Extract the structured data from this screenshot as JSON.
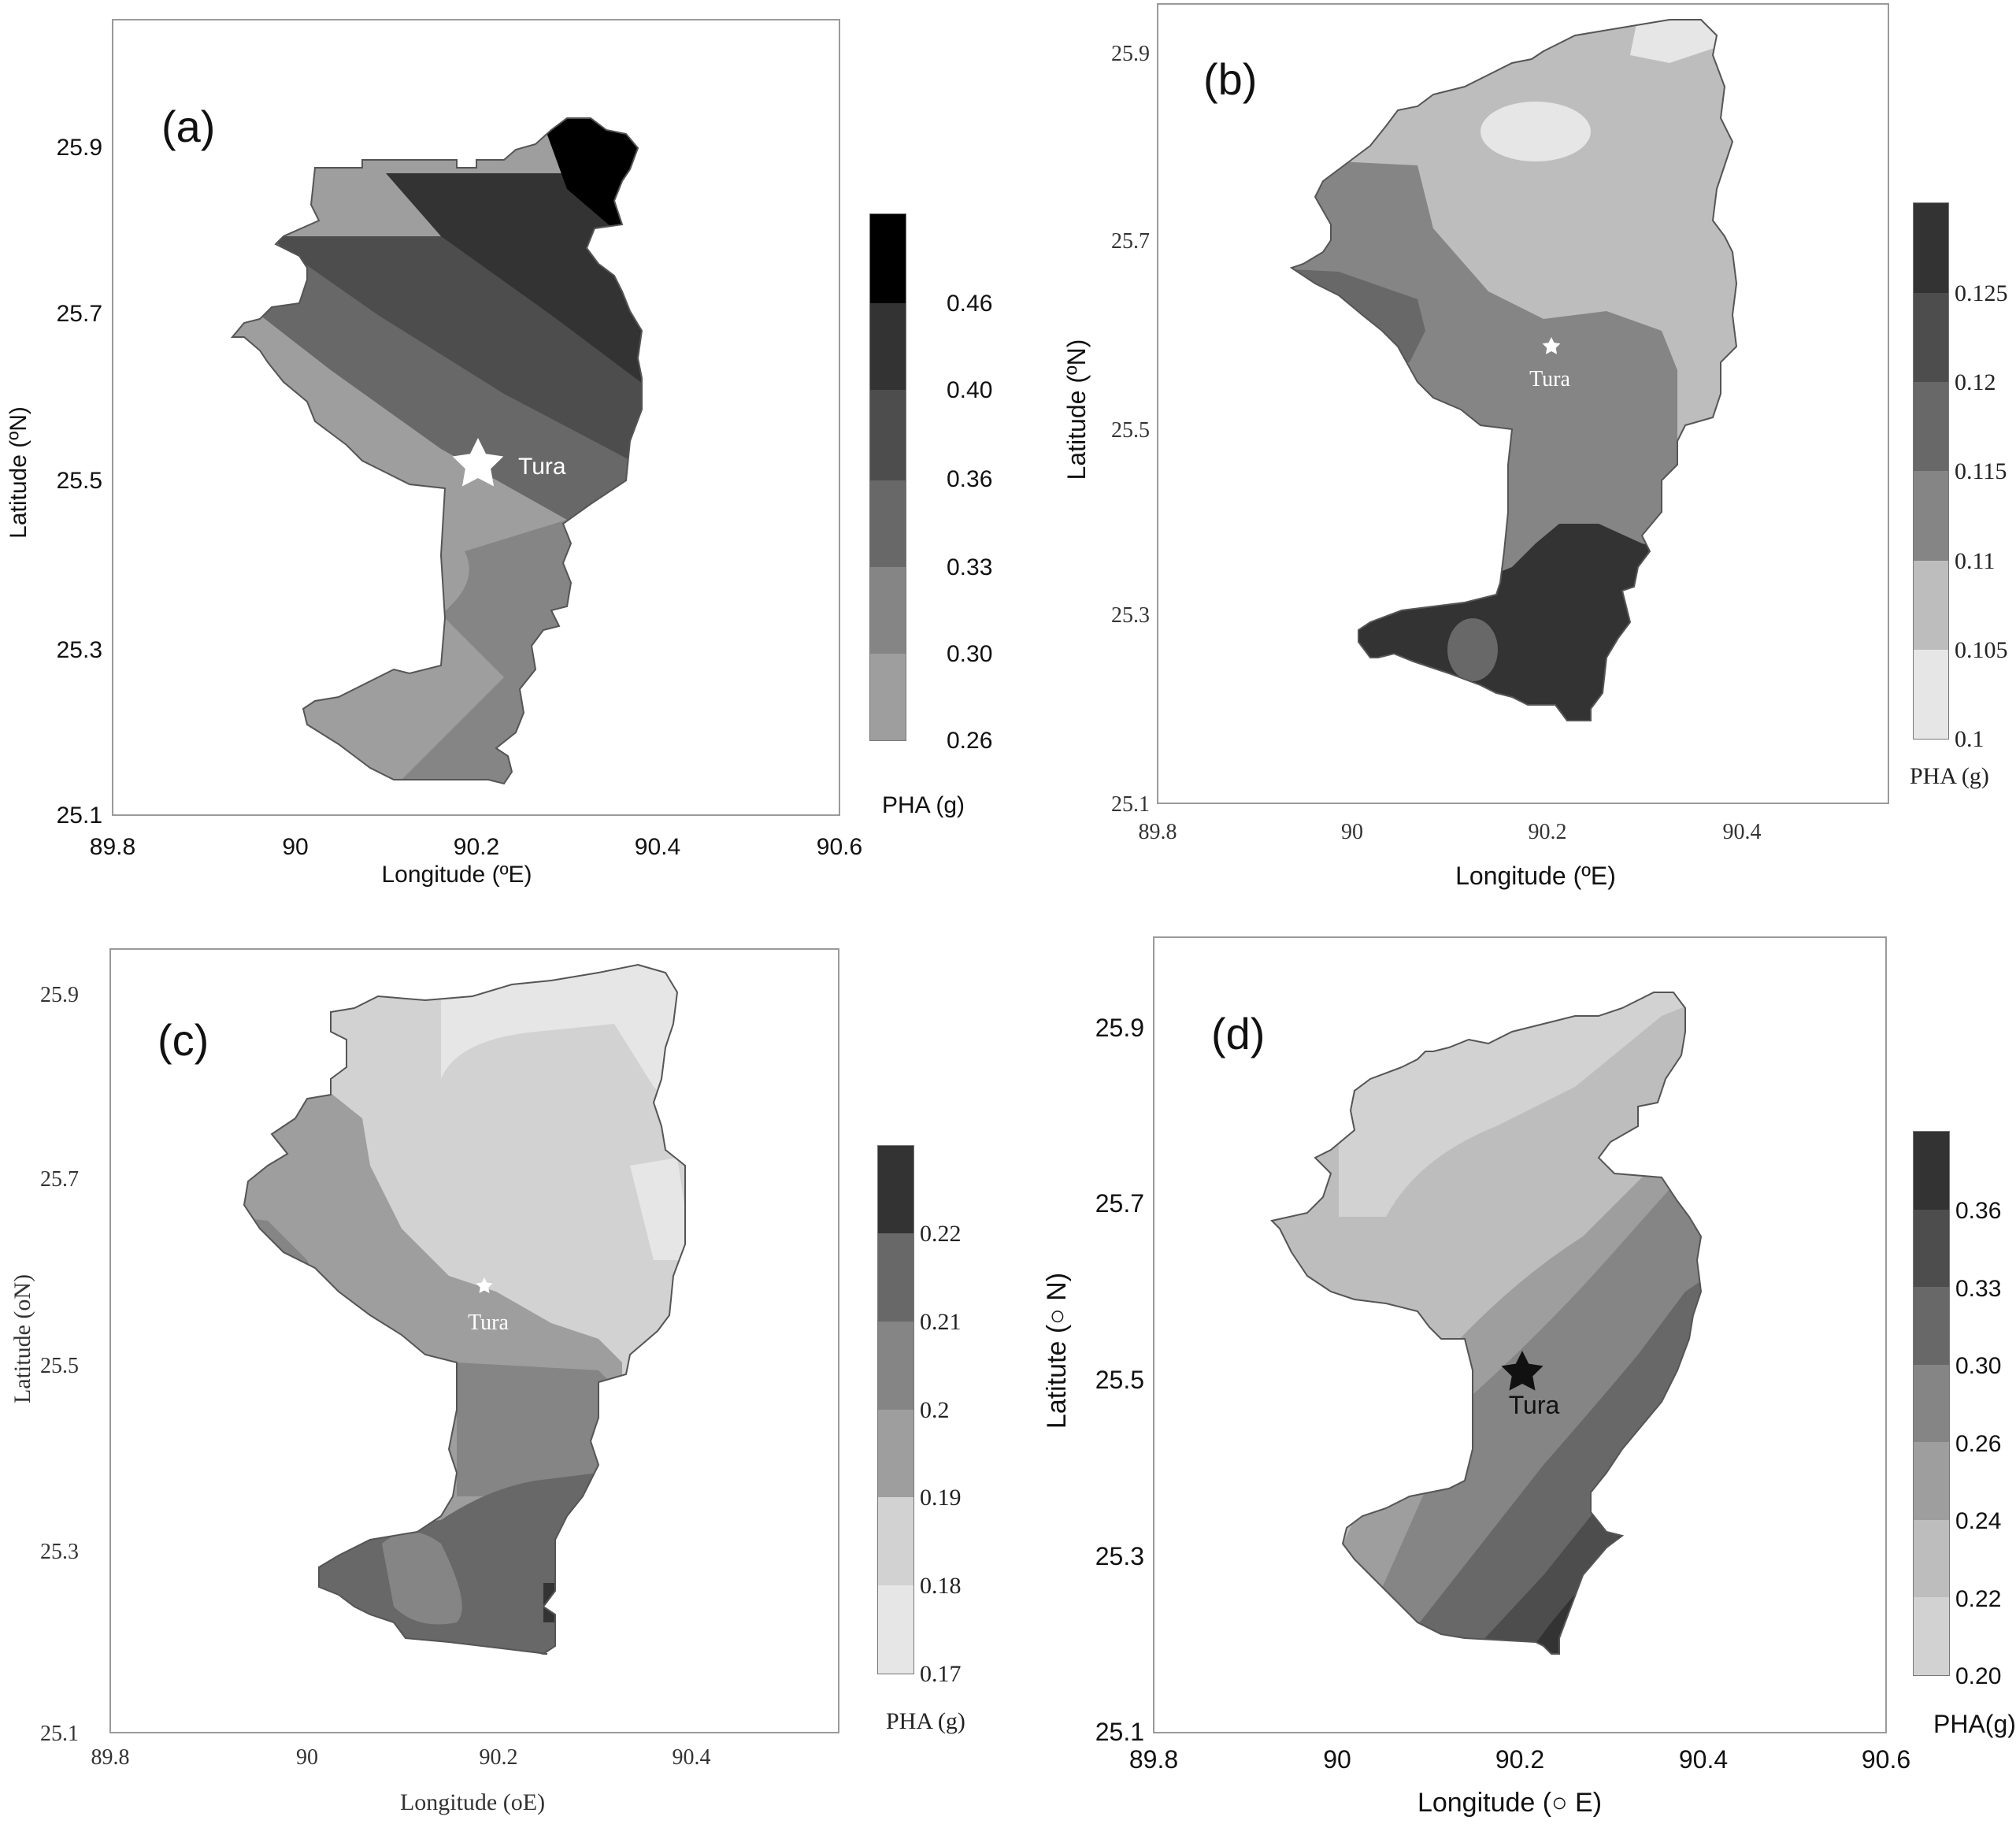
{
  "panels": [
    {
      "id": "a",
      "label": "(a)",
      "xlabel": "Longitude (ºE)",
      "ylabel": "Latitude (ºN)",
      "xticks": [
        "89.8",
        "90",
        "90.2",
        "90.4",
        "90.6"
      ],
      "yticks": [
        "25.1",
        "25.3",
        "25.5",
        "25.7",
        "25.9"
      ],
      "legend_title": "PHA (g)",
      "legend_ticks": [
        "0.26",
        "0.30",
        "0.33",
        "0.36",
        "0.40",
        "0.46"
      ],
      "marker_label": "Tura",
      "marker_color": "#ffffff"
    },
    {
      "id": "b",
      "label": "(b)",
      "xlabel": "Longitude (ºE)",
      "ylabel": "Latitude (ºN)",
      "xticks": [
        "89.8",
        "90",
        "90.2",
        "90.4"
      ],
      "yticks": [
        "25.1",
        "25.3",
        "25.5",
        "25.7",
        "25.9"
      ],
      "legend_title": "PHA (g)",
      "legend_ticks": [
        "0.1",
        "0.105",
        "0.11",
        "0.115",
        "0.12",
        "0.125"
      ],
      "marker_label": "Tura",
      "marker_color": "#ffffff"
    },
    {
      "id": "c",
      "label": "(c)",
      "xlabel": "Longitude (oE)",
      "ylabel": "Latitude (oN)",
      "xticks": [
        "89.8",
        "90",
        "90.2",
        "90.4"
      ],
      "yticks": [
        "25.1",
        "25.3",
        "25.5",
        "25.7",
        "25.9"
      ],
      "legend_title": "PHA (g)",
      "legend_ticks": [
        "0.17",
        "0.18",
        "0.19",
        "0.2",
        "0.21",
        "0.22"
      ],
      "marker_label": "Tura",
      "marker_color": "#ffffff"
    },
    {
      "id": "d",
      "label": "(d)",
      "xlabel": "Longitude (○ E)",
      "ylabel": "Latitute (○ N)",
      "xticks": [
        "89.8",
        "90",
        "90.2",
        "90.4",
        "90.6"
      ],
      "yticks": [
        "25.1",
        "25.3",
        "25.5",
        "25.7",
        "25.9"
      ],
      "legend_title": "PHA(g)",
      "legend_ticks": [
        "0.20",
        "0.22",
        "0.24",
        "0.26",
        "0.30",
        "0.33",
        "0.36"
      ],
      "marker_label": "Tura",
      "marker_color": "#111111"
    }
  ],
  "colors": {
    "shade_1": "#e6e6e6",
    "shade_2": "#bdbdbd",
    "shade_3": "#9e9e9e",
    "shade_4": "#858585",
    "shade_5": "#686868",
    "shade_6": "#4d4d4d",
    "shade_7": "#333333",
    "shade_8": "#000000"
  }
}
